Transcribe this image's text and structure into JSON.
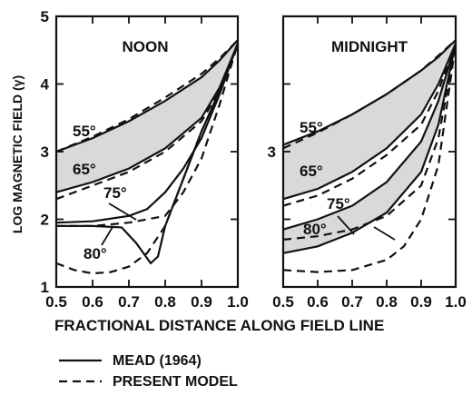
{
  "chart_data": {
    "type": "line",
    "ylabel": "LOG MAGNETIC FIELD (γ)",
    "xlabel": "FRACTIONAL DISTANCE ALONG FIELD LINE",
    "legend": {
      "placement": "bottom-left",
      "entries": [
        {
          "label": "MEAD (1964)",
          "style": "solid"
        },
        {
          "label": "PRESENT MODEL",
          "style": "dashed"
        }
      ]
    },
    "panels": [
      {
        "title": "NOON",
        "xlim": [
          0.5,
          1.0
        ],
        "ylim": [
          1,
          5
        ],
        "xticks": [
          "0.5",
          "0.6",
          "0.7",
          "0.8",
          "0.9",
          "1.0"
        ],
        "yticks": [
          "1",
          "2",
          "3",
          "4",
          "5"
        ],
        "series": [
          {
            "label": "55°",
            "style": "solid",
            "x": [
              0.5,
              0.6,
              0.7,
              0.8,
              0.9,
              0.95,
              1.0
            ],
            "y": [
              3.0,
              3.2,
              3.45,
              3.75,
              4.1,
              4.35,
              4.65
            ]
          },
          {
            "label": "55°",
            "style": "dashed",
            "x": [
              0.5,
              0.6,
              0.7,
              0.8,
              0.9,
              0.95,
              1.0
            ],
            "y": [
              3.0,
              3.22,
              3.48,
              3.8,
              4.15,
              4.38,
              4.65
            ]
          },
          {
            "label": "65°",
            "style": "solid",
            "x": [
              0.5,
              0.6,
              0.7,
              0.8,
              0.9,
              0.95,
              1.0
            ],
            "y": [
              2.4,
              2.55,
              2.75,
              3.05,
              3.5,
              3.95,
              4.6
            ]
          },
          {
            "label": "65°",
            "style": "dashed",
            "x": [
              0.5,
              0.6,
              0.7,
              0.8,
              0.9,
              0.95,
              1.0
            ],
            "y": [
              2.3,
              2.5,
              2.7,
              3.0,
              3.45,
              3.9,
              4.6
            ]
          },
          {
            "label": "75°",
            "style": "solid",
            "x": [
              0.5,
              0.6,
              0.7,
              0.75,
              0.8,
              0.85,
              0.9,
              0.95,
              1.0
            ],
            "y": [
              1.95,
              1.97,
              2.05,
              2.15,
              2.4,
              2.75,
              3.2,
              3.85,
              4.6
            ]
          },
          {
            "label": "75°",
            "style": "dashed",
            "x": [
              0.5,
              0.6,
              0.7,
              0.8,
              0.85,
              0.9,
              0.95,
              1.0
            ],
            "y": [
              1.9,
              1.9,
              1.95,
              2.05,
              2.4,
              2.9,
              3.7,
              4.6
            ]
          },
          {
            "label": "80°",
            "style": "solid",
            "x": [
              0.5,
              0.6,
              0.68,
              0.72,
              0.76,
              0.78,
              0.8,
              0.85,
              0.9,
              0.95,
              1.0
            ],
            "y": [
              1.9,
              1.9,
              1.88,
              1.65,
              1.35,
              1.45,
              1.9,
              2.6,
              3.3,
              3.9,
              4.6
            ]
          },
          {
            "label": "80°",
            "style": "dashed",
            "x": [
              0.5,
              0.55,
              0.6,
              0.65,
              0.7,
              0.75,
              0.8,
              0.85,
              0.9,
              0.95,
              1.0
            ],
            "y": [
              1.35,
              1.25,
              1.2,
              1.22,
              1.3,
              1.5,
              1.9,
              2.6,
              3.3,
              3.9,
              4.6
            ]
          }
        ]
      },
      {
        "title": "MIDNIGHT",
        "xlim": [
          0.5,
          1.0
        ],
        "ylim": [
          1,
          5
        ],
        "xticks": [
          "0.5",
          "0.6",
          "0.7",
          "0.8",
          "0.9",
          "1.0"
        ],
        "yticks": [
          "3"
        ],
        "series": [
          {
            "label": "55°",
            "style": "solid",
            "x": [
              0.5,
              0.6,
              0.7,
              0.8,
              0.9,
              0.95,
              1.0
            ],
            "y": [
              3.1,
              3.3,
              3.55,
              3.85,
              4.2,
              4.4,
              4.65
            ]
          },
          {
            "label": "55°",
            "style": "dashed",
            "x": [
              0.5,
              0.6,
              0.7,
              0.8,
              0.9,
              0.95,
              1.0
            ],
            "y": [
              3.05,
              3.28,
              3.55,
              3.85,
              4.2,
              4.42,
              4.65
            ]
          },
          {
            "label": "65°",
            "style": "solid",
            "x": [
              0.5,
              0.6,
              0.7,
              0.8,
              0.9,
              0.95,
              1.0
            ],
            "y": [
              2.3,
              2.45,
              2.7,
              3.05,
              3.55,
              4.0,
              4.6
            ]
          },
          {
            "label": "65°",
            "style": "dashed",
            "x": [
              0.5,
              0.6,
              0.7,
              0.8,
              0.9,
              0.95,
              1.0
            ],
            "y": [
              2.2,
              2.35,
              2.6,
              2.95,
              3.4,
              3.9,
              4.6
            ]
          },
          {
            "label": "75°",
            "style": "solid",
            "x": [
              0.5,
              0.6,
              0.7,
              0.8,
              0.9,
              0.95,
              1.0
            ],
            "y": [
              1.85,
              2.0,
              2.2,
              2.55,
              3.15,
              3.75,
              4.6
            ]
          },
          {
            "label": "75°",
            "style": "dashed",
            "x": [
              0.5,
              0.6,
              0.7,
              0.8,
              0.9,
              0.95,
              1.0
            ],
            "y": [
              1.7,
              1.75,
              1.85,
              2.05,
              2.5,
              3.2,
              4.6
            ]
          },
          {
            "label": "80°",
            "style": "solid",
            "x": [
              0.5,
              0.6,
              0.7,
              0.8,
              0.9,
              0.95,
              1.0
            ],
            "y": [
              1.5,
              1.6,
              1.8,
              2.1,
              2.7,
              3.4,
              4.6
            ]
          },
          {
            "label": "80°",
            "style": "dashed",
            "x": [
              0.5,
              0.6,
              0.7,
              0.8,
              0.85,
              0.9,
              0.95,
              1.0
            ],
            "y": [
              1.25,
              1.22,
              1.25,
              1.4,
              1.6,
              2.0,
              2.8,
              4.6
            ]
          }
        ],
        "shaded_bands": [
          "55°",
          "80°"
        ]
      }
    ]
  }
}
